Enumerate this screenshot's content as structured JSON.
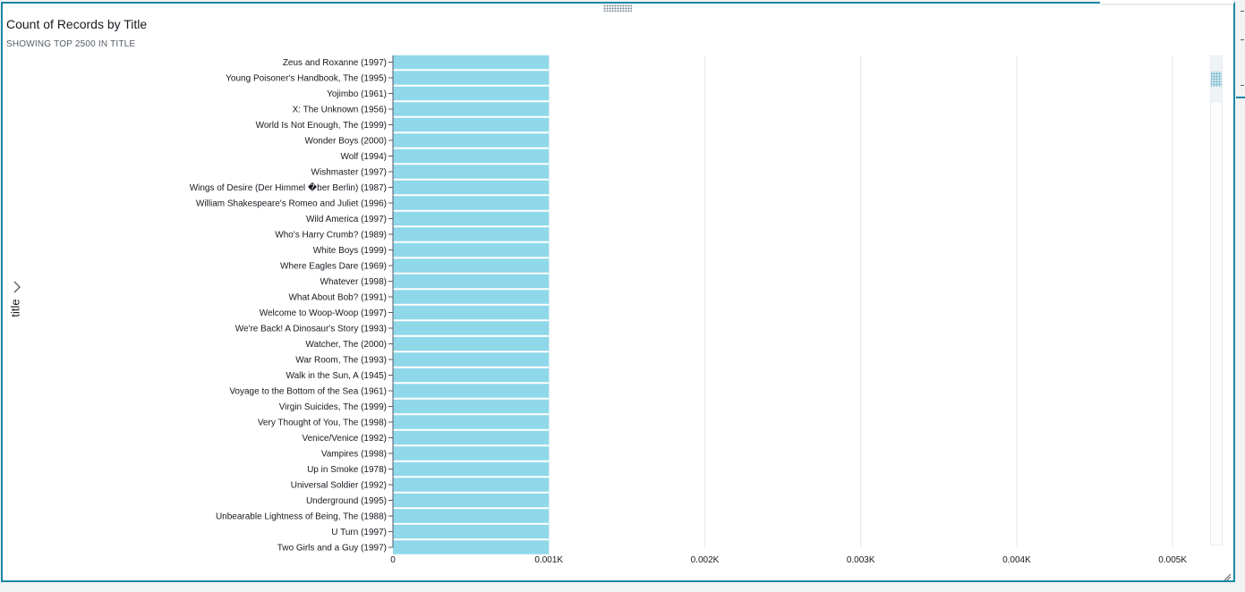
{
  "visual": {
    "title": "Count of Records by Title",
    "subtitle": "SHOWING TOP 2500 IN TITLE",
    "y_axis_title": "title",
    "colors": {
      "bar": "#8fd8ea",
      "border": "#1b88a4",
      "grid": "#e6e6e6"
    }
  },
  "icons": {
    "axis_toggle": "chevron-right-icon",
    "drag": "drag-handle-icon",
    "resize": "resize-corner-icon"
  },
  "chart_data": {
    "type": "bar",
    "orientation": "horizontal",
    "title": "Count of Records by Title",
    "subtitle": "SHOWING TOP 2500 IN TITLE",
    "ylabel": "title",
    "xlabel": "",
    "categories": [
      "Zeus and Roxanne (1997)",
      "Young Poisoner's Handbook, The (1995)",
      "Yojimbo (1961)",
      "X: The Unknown (1956)",
      "World Is Not Enough, The (1999)",
      "Wonder Boys (2000)",
      "Wolf (1994)",
      "Wishmaster (1997)",
      "Wings of Desire (Der Himmel �ber Berlin) (1987)",
      "William Shakespeare's Romeo and Juliet (1996)",
      "Wild America (1997)",
      "Who's Harry Crumb? (1989)",
      "White Boys (1999)",
      "Where Eagles Dare (1969)",
      "Whatever (1998)",
      "What About Bob? (1991)",
      "Welcome to Woop-Woop (1997)",
      "We're Back! A Dinosaur's Story (1993)",
      "Watcher, The (2000)",
      "War Room, The (1993)",
      "Walk in the Sun, A (1945)",
      "Voyage to the Bottom of the Sea (1961)",
      "Virgin Suicides, The (1999)",
      "Very Thought of You, The (1998)",
      "Venice/Venice (1992)",
      "Vampires (1998)",
      "Up in Smoke (1978)",
      "Universal Soldier (1992)",
      "Underground (1995)",
      "Unbearable Lightness of Being, The (1988)",
      "U Turn (1997)",
      "Two Girls and a Guy (1997)"
    ],
    "values": [
      1,
      1,
      1,
      1,
      1,
      1,
      1,
      1,
      1,
      1,
      1,
      1,
      1,
      1,
      1,
      1,
      1,
      1,
      1,
      1,
      1,
      1,
      1,
      1,
      1,
      1,
      1,
      1,
      1,
      1,
      1,
      1
    ],
    "xlim": [
      0,
      5.2
    ],
    "x_ticks": [
      0,
      1,
      2,
      3,
      4,
      5
    ],
    "x_tick_labels": [
      "0",
      "0.001K",
      "0.002K",
      "0.003K",
      "0.004K",
      "0.005K"
    ],
    "grid": true,
    "legend": "none"
  }
}
